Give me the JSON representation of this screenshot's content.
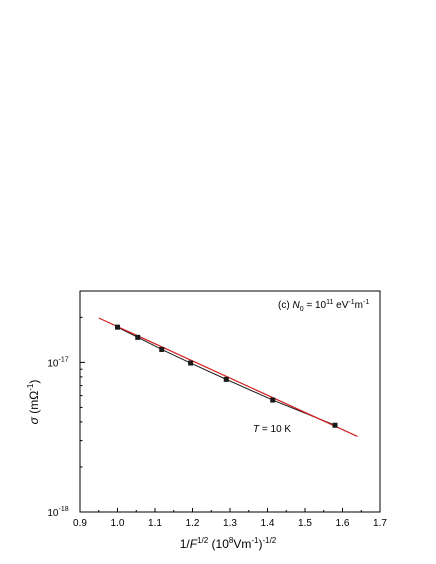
{
  "chart_data": {
    "type": "scatter",
    "xlim": [
      0.9,
      1.7
    ],
    "ylim": [
      1e-18,
      3e-17
    ],
    "y_scale": "log",
    "x_ticks": [
      0.9,
      1.0,
      1.1,
      1.2,
      1.3,
      1.4,
      1.5,
      1.6,
      1.7
    ],
    "x_tick_labels": [
      "0.9",
      "1.0",
      "1.1",
      "1.2",
      "1.3",
      "1.4",
      "1.5",
      "1.6",
      "1.7"
    ],
    "y_major_ticks": [
      {
        "value": 1e-18,
        "base": "10",
        "exp": "-18"
      },
      {
        "value": 1e-17,
        "base": "10",
        "exp": "-17"
      }
    ],
    "grid": false,
    "series": [
      {
        "kind": "markers",
        "marker": "square",
        "color": "#1a1a1a",
        "connected": true,
        "x": [
          1.0,
          1.054,
          1.118,
          1.195,
          1.29,
          1.414,
          1.58
        ],
        "y": [
          1.72e-17,
          1.47e-17,
          1.22e-17,
          9.9e-18,
          7.7e-18,
          5.6e-18,
          3.8e-18
        ]
      },
      {
        "kind": "fit",
        "color": "#d42020",
        "x": [
          0.95,
          1.64
        ],
        "y": [
          1.98e-17,
          3.2e-18
        ]
      }
    ],
    "xlabel": {
      "prefix": "1/",
      "var": "F",
      "sup1": "1/2",
      "mid": " (10",
      "sup2": "8",
      "mid2": "Vm",
      "sup3": "-1",
      "end": ")",
      "sup4": "-1/2"
    },
    "ylabel": {
      "var": "σ",
      "text": " (mΩ",
      "sup": "-1",
      "end": ")"
    },
    "annotations": {
      "condition": {
        "prefix": "(c) ",
        "var": "N",
        "sub": "0",
        "eq": " = 10",
        "sup1": "11",
        "unit1": " eV",
        "sup2": "-1",
        "unit2": "m",
        "sup3": "-1"
      },
      "temperature": {
        "var": "T",
        "text": " = 10 K"
      }
    }
  }
}
